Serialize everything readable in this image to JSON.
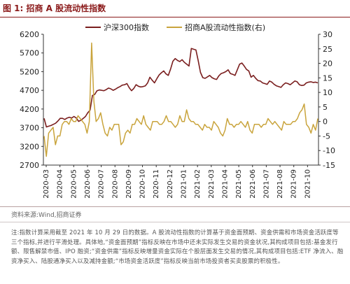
{
  "figure_title": "图 1:  招商 A 股流动性指数",
  "source_text": "资料来源:Wind,招商证券",
  "note_text": "注:指数计算采用截至 2021 年 10 月 29 日的数据。A 股流动性指数的计算基于资金面预期、资金供需和市场资金活跃度等三个指标,并进行平滑处理。具体地,“资金面预期”指标反映在市场中还未实际发生交易的资金状况,其构成项目包括:基金发行额、限售解禁市值、IPO 融资;“资金供需”指标反映增量资金实际在个股层面发生交易的情况,其构成项目包括:ETF 净流入、融资净买入、陆股通净买入以及减持金额;“市场资金活跃度”指标反映当前市场投资者买卖股票的积极性。",
  "chart_data": {
    "type": "line",
    "title": "",
    "legend_position": "top-center",
    "grid": false,
    "xlabels": [
      "2020-03",
      "2020-04",
      "2020-05",
      "2020-06",
      "2020-07",
      "2020-08",
      "2020-09",
      "2020-10",
      "2020-11",
      "2020-12",
      "2021-01",
      "2021-02",
      "2021-03",
      "2021-04",
      "2021-05",
      "2021-06",
      "2021-07",
      "2021-08",
      "2021-09",
      "2021-10"
    ],
    "left_axis": {
      "ylim": [
        2700,
        6200
      ],
      "ticks": [
        2700,
        3200,
        3700,
        4200,
        4700,
        5200,
        5700,
        6200
      ]
    },
    "right_axis": {
      "ylim": [
        -15,
        30
      ],
      "ticks": [
        -15,
        -10,
        -5,
        0,
        5,
        10,
        15,
        20,
        25,
        30
      ]
    },
    "series": [
      {
        "name": "沪深300指数",
        "axis": "left",
        "color": "#7a1e1e",
        "values": [
          3950,
          3720,
          3740,
          3760,
          3790,
          3820,
          3880,
          3950,
          3950,
          3920,
          3960,
          3980,
          3960,
          4000,
          3960,
          3870,
          3900,
          3950,
          4000,
          4100,
          4170,
          4560,
          4590,
          4690,
          4710,
          4700,
          4690,
          4720,
          4760,
          4740,
          4700,
          4730,
          4770,
          4800,
          4840,
          4850,
          4880,
          4770,
          4690,
          4750,
          4850,
          4810,
          4790,
          4800,
          4820,
          4900,
          5050,
          4970,
          4900,
          5010,
          5110,
          5170,
          5220,
          5140,
          5100,
          5270,
          5480,
          5550,
          5500,
          5470,
          5520,
          5450,
          5400,
          5350,
          5820,
          5800,
          5780,
          5500,
          5180,
          5040,
          5020,
          5060,
          5100,
          5040,
          5010,
          4990,
          5090,
          5150,
          5170,
          5200,
          5250,
          5150,
          5130,
          5100,
          5250,
          5400,
          5430,
          5350,
          5260,
          5220,
          5050,
          5100,
          5020,
          4960,
          4950,
          4900,
          4880,
          4860,
          4950,
          4920,
          4860,
          4820,
          4800,
          4780,
          4850,
          4900,
          4880,
          4850,
          4900,
          4950,
          4930,
          4850,
          4830,
          4840,
          4900,
          4920,
          4930,
          4910,
          4920,
          4900
        ]
      },
      {
        "name": "招商A股流动性指数(右)",
        "axis": "right",
        "color": "#c9a43c",
        "values": [
          -5,
          -12,
          -4,
          -3,
          -2,
          -8,
          -5,
          -5,
          -1,
          0,
          0,
          -1,
          1,
          0,
          0,
          2,
          1,
          0,
          -1,
          -4,
          0,
          27,
          7,
          0,
          1,
          3,
          -1,
          -4,
          -5,
          -2,
          -3,
          -1,
          -1,
          -1,
          -8,
          -7,
          -4,
          -3,
          -4,
          -1,
          -1,
          1,
          0,
          -1,
          2,
          -1,
          -2,
          -3,
          0,
          0,
          0,
          -1,
          -1,
          0,
          2,
          0,
          0,
          -1,
          -2,
          -1,
          2,
          0,
          0,
          4,
          1,
          0,
          0,
          -1,
          -1,
          -2,
          -3,
          -1,
          -2,
          -2,
          -3,
          0,
          -1,
          -2,
          -4,
          -5,
          -3,
          1,
          -1,
          -1,
          -2,
          -1,
          -1,
          0,
          -1,
          -2,
          0,
          -3,
          -4,
          -1,
          -1,
          -1,
          -2,
          -1,
          -1,
          1,
          0,
          -1,
          0,
          -1,
          -2,
          -3,
          0,
          -1,
          -1,
          -1,
          0,
          0,
          1,
          3,
          4,
          6,
          -1,
          -2,
          -4,
          -1,
          -3,
          1
        ]
      }
    ]
  }
}
